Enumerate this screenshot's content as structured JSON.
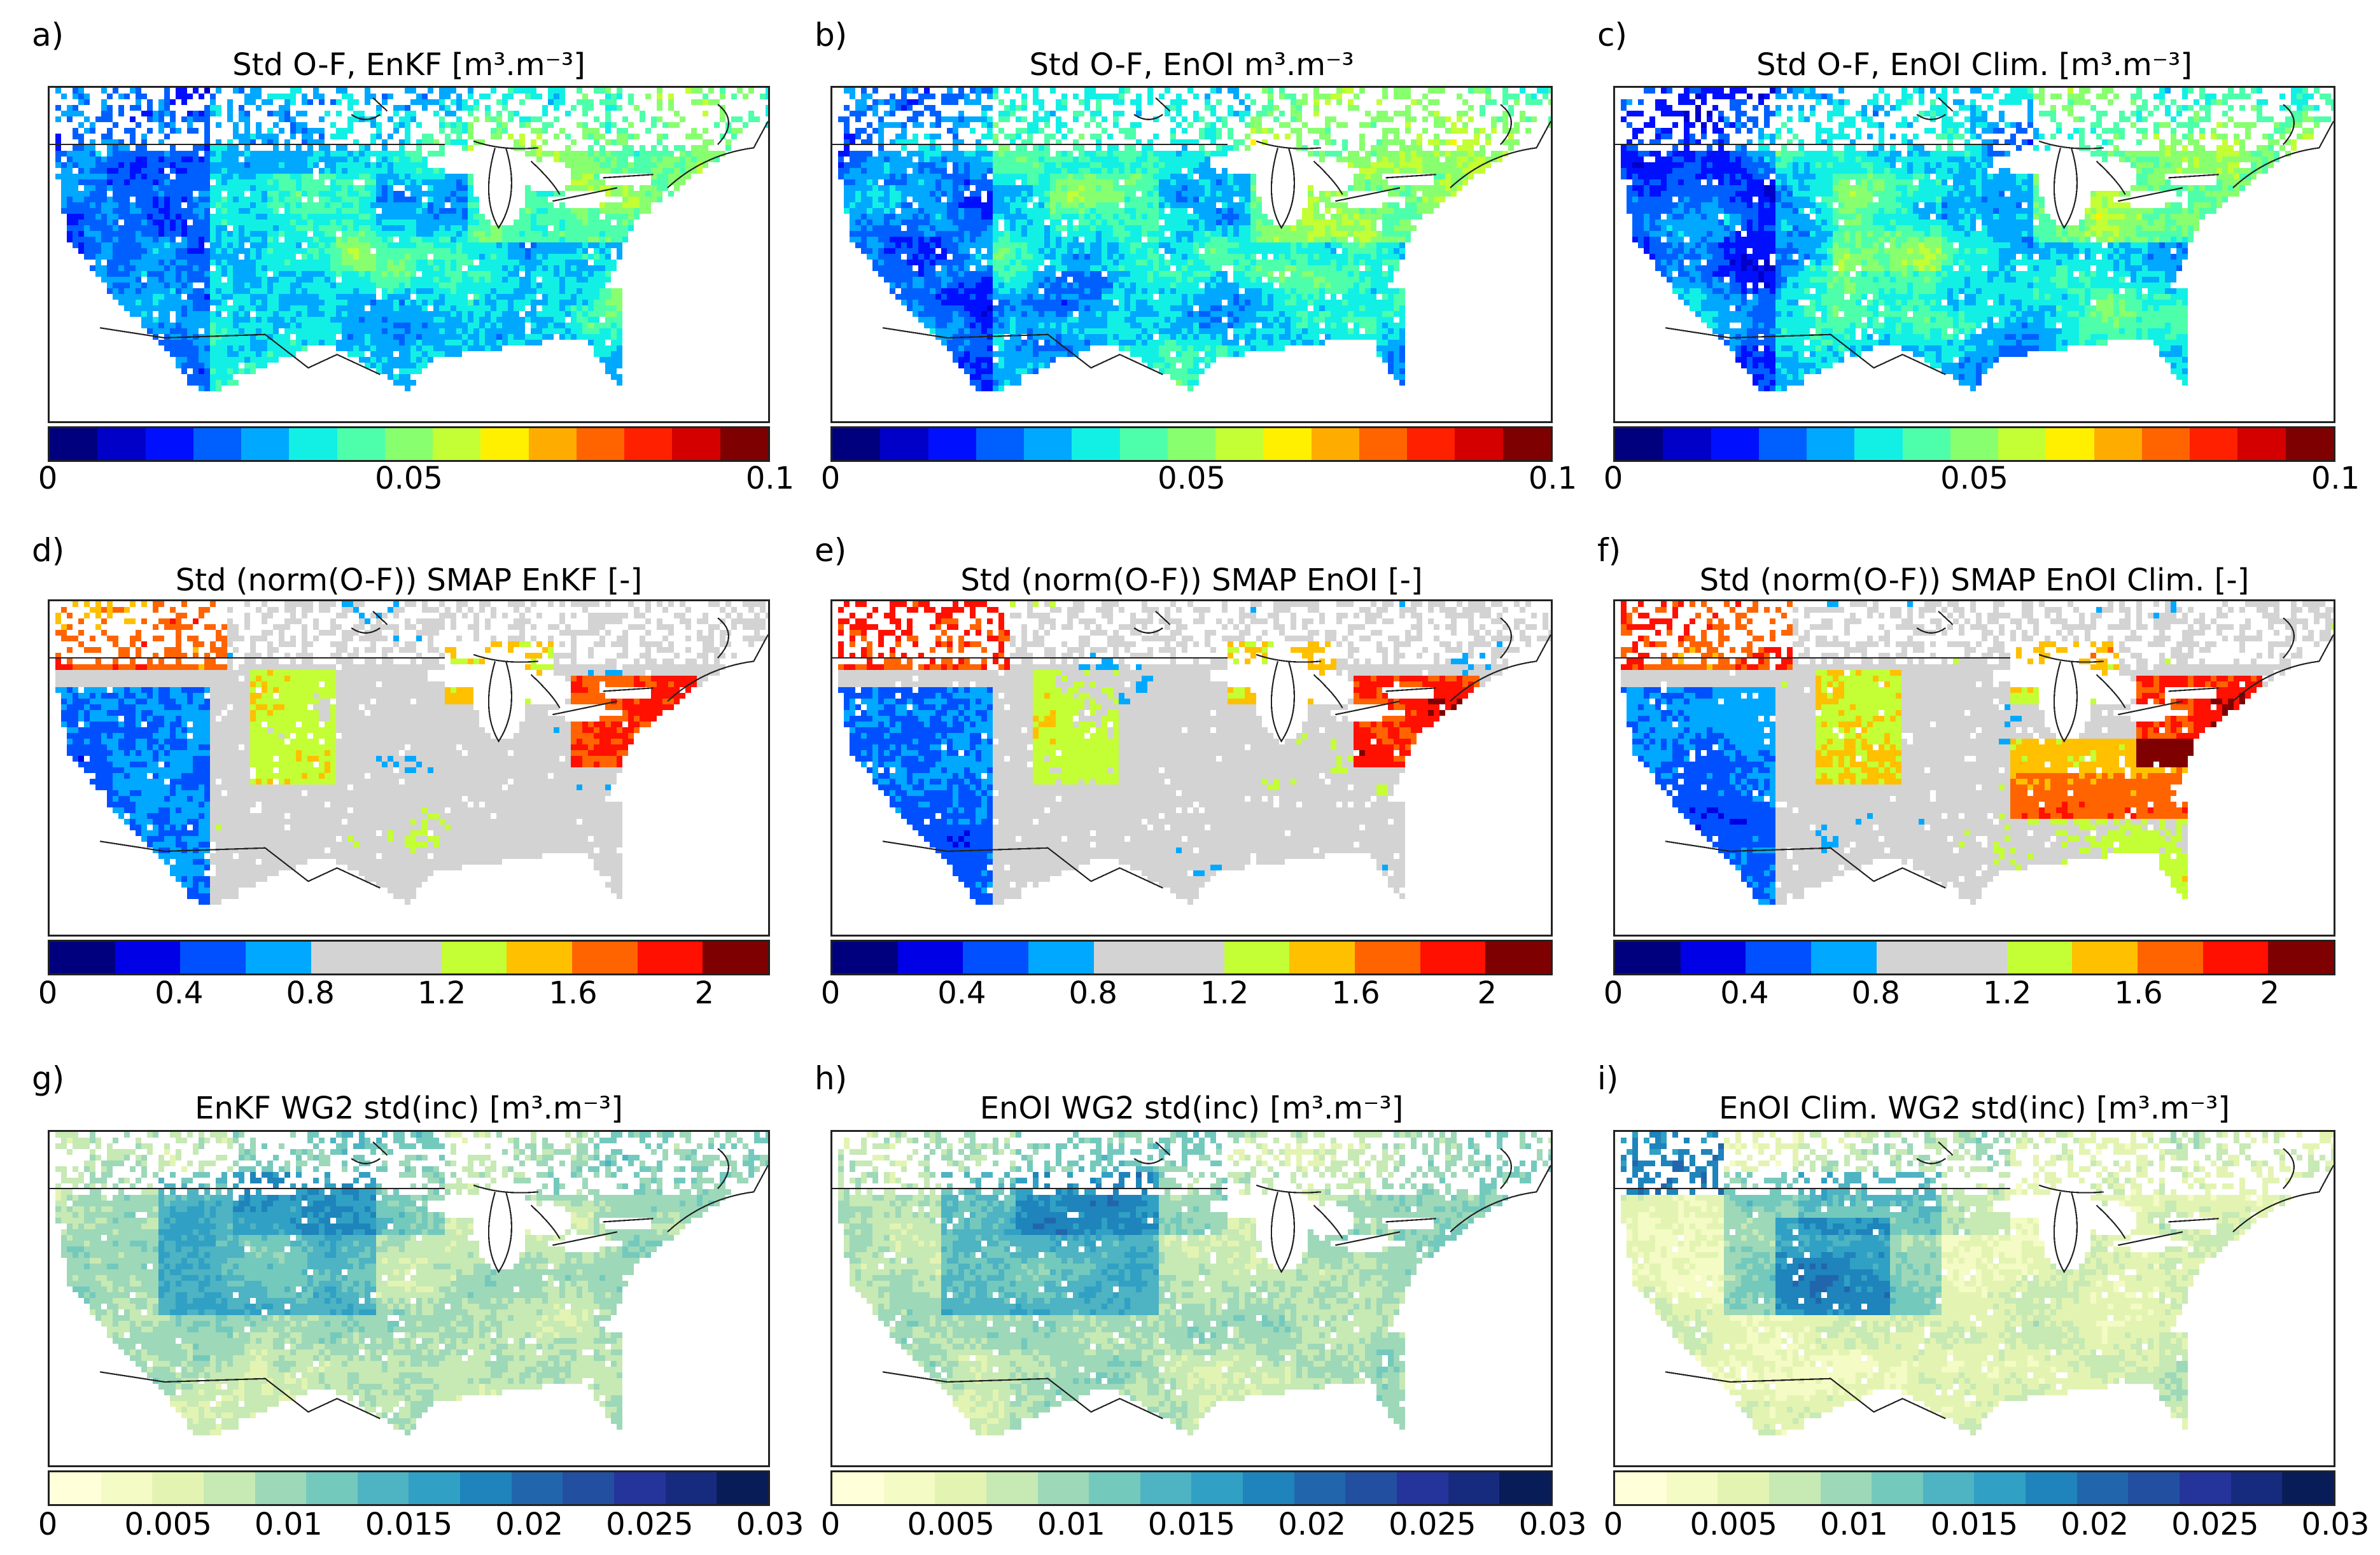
{
  "figure": {
    "rows": [
      {
        "colorbar": {
          "colors": [
            "#00007f",
            "#0000c8",
            "#0010ff",
            "#0060ff",
            "#00a8ff",
            "#12f0e5",
            "#4dffaa",
            "#88ff6f",
            "#c3ff34",
            "#fff000",
            "#ffac00",
            "#ff6400",
            "#ff2000",
            "#d40000",
            "#7f0000"
          ],
          "ticks": [
            "0",
            "0.05",
            "0.1"
          ],
          "tick_values": [
            0,
            0.05,
            0.1
          ],
          "range": [
            0,
            0.1
          ]
        },
        "panels": [
          {
            "label": "a)",
            "title": "Std O-F, EnKF [m³.m⁻³]"
          },
          {
            "label": "b)",
            "title": "Std O-F, EnOI m³.m⁻³"
          },
          {
            "label": "c)",
            "title": "Std O-F, EnOI Clim. [m³.m⁻³]"
          }
        ]
      },
      {
        "colorbar": {
          "colors": [
            "#00007f",
            "#0000e6",
            "#0050ff",
            "#00a8ff",
            "#d3d3d3",
            "#d3d3d3",
            "#c3ff34",
            "#ffc000",
            "#ff6400",
            "#ff1000",
            "#7f0000"
          ],
          "ticks": [
            "0",
            "0.4",
            "0.8",
            "1.2",
            "1.6",
            "2"
          ],
          "tick_values": [
            0,
            0.4,
            0.8,
            1.2,
            1.6,
            2.0
          ],
          "range": [
            0,
            2.2
          ]
        },
        "panels": [
          {
            "label": "d)",
            "title": "Std (norm(O-F)) SMAP EnKF [-]"
          },
          {
            "label": "e)",
            "title": "Std (norm(O-F)) SMAP EnOI [-]"
          },
          {
            "label": "f)",
            "title": "Std (norm(O-F)) SMAP EnOI Clim. [-]"
          }
        ]
      },
      {
        "colorbar": {
          "colors": [
            "#ffffd9",
            "#f4fbc4",
            "#e3f4b2",
            "#c7e9b4",
            "#9dd8b8",
            "#74c9bd",
            "#4eb3c2",
            "#30a0c4",
            "#1e84bb",
            "#2166ac",
            "#234fa0",
            "#25349a",
            "#172b7e",
            "#081d58"
          ],
          "ticks": [
            "0",
            "0.005",
            "0.01",
            "0.015",
            "0.02",
            "0.025",
            "0.03"
          ],
          "tick_values": [
            0,
            0.005,
            0.01,
            0.015,
            0.02,
            0.025,
            0.03
          ],
          "range": [
            0,
            0.03
          ]
        },
        "panels": [
          {
            "label": "g)",
            "title": "EnKF WG2 std(inc) [m³.m⁻³]"
          },
          {
            "label": "h)",
            "title": "EnOI WG2 std(inc) [m³.m⁻³]"
          },
          {
            "label": "i)",
            "title": "EnOI Clim. WG2 std(inc) [m³.m⁻³]"
          }
        ]
      }
    ]
  },
  "chart_data": [
    {
      "type": "heatmap",
      "title": "Std O-F, EnKF [m³.m⁻³]",
      "colorbar_range": [
        0,
        0.1
      ],
      "colorbar_ticks": [
        0,
        0.05,
        0.1
      ],
      "region": "CONUS"
    },
    {
      "type": "heatmap",
      "title": "Std O-F, EnOI m³.m⁻³",
      "colorbar_range": [
        0,
        0.1
      ],
      "colorbar_ticks": [
        0,
        0.05,
        0.1
      ],
      "region": "CONUS"
    },
    {
      "type": "heatmap",
      "title": "Std O-F, EnOI Clim. [m³.m⁻³]",
      "colorbar_range": [
        0,
        0.1
      ],
      "colorbar_ticks": [
        0,
        0.05,
        0.1
      ],
      "region": "CONUS"
    },
    {
      "type": "heatmap",
      "title": "Std (norm(O-F)) SMAP EnKF [-]",
      "colorbar_range": [
        0,
        2.2
      ],
      "colorbar_ticks": [
        0,
        0.4,
        0.8,
        1.2,
        1.6,
        2
      ],
      "region": "CONUS"
    },
    {
      "type": "heatmap",
      "title": "Std (norm(O-F)) SMAP EnOI [-]",
      "colorbar_range": [
        0,
        2.2
      ],
      "colorbar_ticks": [
        0,
        0.4,
        0.8,
        1.2,
        1.6,
        2
      ],
      "region": "CONUS"
    },
    {
      "type": "heatmap",
      "title": "Std (norm(O-F)) SMAP EnOI Clim. [-]",
      "colorbar_range": [
        0,
        2.2
      ],
      "colorbar_ticks": [
        0,
        0.4,
        0.8,
        1.2,
        1.6,
        2
      ],
      "region": "CONUS"
    },
    {
      "type": "heatmap",
      "title": "EnKF WG2 std(inc) [m³.m⁻³]",
      "colorbar_range": [
        0,
        0.03
      ],
      "colorbar_ticks": [
        0,
        0.005,
        0.01,
        0.015,
        0.02,
        0.025,
        0.03
      ],
      "region": "CONUS"
    },
    {
      "type": "heatmap",
      "title": "EnOI WG2 std(inc) [m³.m⁻³]",
      "colorbar_range": [
        0,
        0.03
      ],
      "colorbar_ticks": [
        0,
        0.005,
        0.01,
        0.015,
        0.02,
        0.025,
        0.03
      ],
      "region": "CONUS"
    },
    {
      "type": "heatmap",
      "title": "EnOI Clim. WG2 std(inc) [m³.m⁻³]",
      "colorbar_range": [
        0,
        0.03
      ],
      "colorbar_ticks": [
        0,
        0.005,
        0.01,
        0.015,
        0.02,
        0.025,
        0.03
      ],
      "region": "CONUS"
    }
  ]
}
